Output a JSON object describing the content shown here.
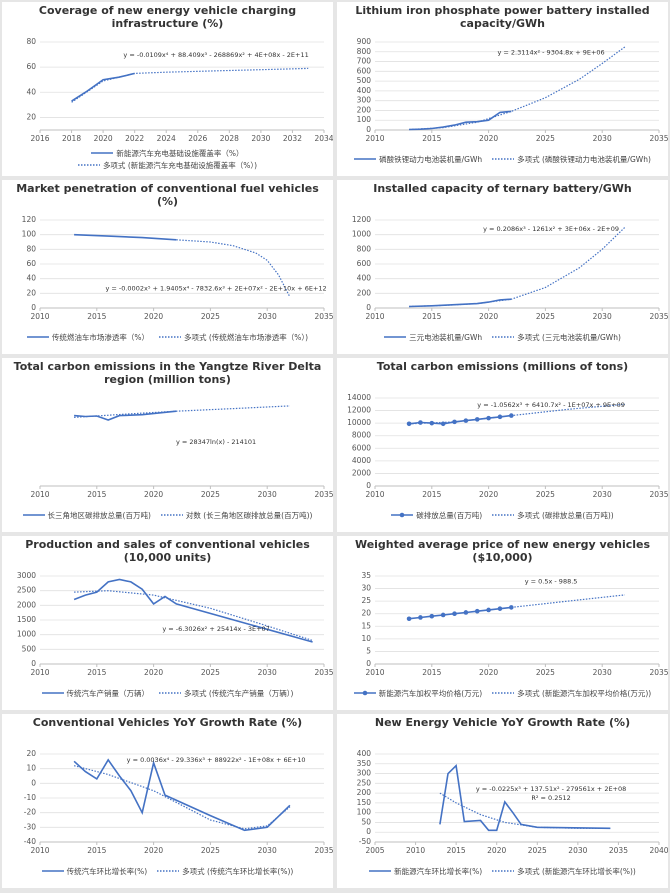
{
  "chart_data": [
    {
      "type": "line",
      "title": "Coverage of new energy vehicle charging infrastructure (%)",
      "xlim": [
        2016,
        2034
      ],
      "xticks": [
        2016,
        2018,
        2020,
        2022,
        2024,
        2026,
        2028,
        2030,
        2032,
        2034
      ],
      "ylim": [
        10,
        80
      ],
      "yticks": [
        20,
        40,
        60,
        80
      ],
      "grid": true,
      "series": [
        {
          "name": "新能源汽车充电基础设施覆盖率（%）",
          "color": "#4472c4",
          "style": "solid",
          "x": [
            2018,
            2019,
            2020,
            2021,
            2022
          ],
          "values": [
            33,
            41,
            50,
            52,
            55
          ]
        },
        {
          "name": "多项式 (新能源汽车充电基础设施覆盖率（%）)",
          "color": "#4472c4",
          "style": "dotted",
          "x": [
            2018,
            2020,
            2022,
            2024,
            2027,
            2030,
            2033
          ],
          "values": [
            32,
            49,
            55,
            56,
            57,
            58,
            59
          ]
        }
      ],
      "annotations": [
        "y = -0.0109x⁴ + 88.409x³ - 268869x² + 4E+08x - 2E+11"
      ]
    },
    {
      "type": "line",
      "title": "Lithium iron phosphate power battery installed capacity/GWh",
      "xlim": [
        2010,
        2035
      ],
      "xticks": [
        2010,
        2015,
        2020,
        2025,
        2030,
        2035
      ],
      "ylim": [
        0,
        900
      ],
      "yticks": [
        0,
        100,
        200,
        300,
        400,
        500,
        600,
        700,
        800,
        900
      ],
      "grid": true,
      "series": [
        {
          "name": "磷酸铁锂动力电池装机量/GWh",
          "color": "#4472c4",
          "style": "solid",
          "x": [
            2013,
            2014,
            2015,
            2016,
            2017,
            2018,
            2019,
            2020,
            2021,
            2022
          ],
          "values": [
            5,
            8,
            15,
            30,
            50,
            80,
            85,
            100,
            180,
            190
          ]
        },
        {
          "name": "多项式 (磷酸铁锂动力电池装机量/GWh)",
          "color": "#4472c4",
          "style": "dotted",
          "x": [
            2013,
            2016,
            2019,
            2022,
            2025,
            2028,
            2030,
            2032
          ],
          "values": [
            5,
            25,
            80,
            190,
            330,
            520,
            680,
            850
          ]
        }
      ],
      "annotations": [
        "y = 2.3114x² - 9304.8x + 9E+06"
      ]
    },
    {
      "type": "line",
      "title": "Market penetration of conventional fuel vehicles (%)",
      "xlim": [
        2010,
        2035
      ],
      "xticks": [
        2010,
        2015,
        2020,
        2025,
        2030,
        2035
      ],
      "ylim": [
        0,
        120
      ],
      "yticks": [
        0,
        20,
        40,
        60,
        80,
        100,
        120
      ],
      "grid": true,
      "series": [
        {
          "name": "传统燃油车市场渗透率（%）",
          "color": "#4472c4",
          "style": "solid",
          "x": [
            2013,
            2016,
            2019,
            2022
          ],
          "values": [
            100,
            98,
            96,
            93
          ]
        },
        {
          "name": "多项式 (传统燃油车市场渗透率（%）)",
          "color": "#4472c4",
          "style": "dotted",
          "x": [
            2022,
            2025,
            2027,
            2029,
            2030,
            2031,
            2032
          ],
          "values": [
            93,
            90,
            85,
            75,
            65,
            45,
            15
          ]
        }
      ],
      "annotations": [
        "y = -0.0002x⁵ + 1.9405x⁴ - 7832.6x³ + 2E+07x² - 2E+10x + 6E+12"
      ]
    },
    {
      "type": "line",
      "title": "Installed capacity of ternary battery/GWh",
      "xlim": [
        2010,
        2035
      ],
      "xticks": [
        2010,
        2015,
        2020,
        2025,
        2030,
        2035
      ],
      "ylim": [
        0,
        1200
      ],
      "yticks": [
        0,
        200,
        400,
        600,
        800,
        1000,
        1200
      ],
      "grid": true,
      "series": [
        {
          "name": "三元电池装机量/GWh",
          "color": "#4472c4",
          "style": "solid",
          "x": [
            2013,
            2015,
            2017,
            2019,
            2020,
            2021,
            2022
          ],
          "values": [
            20,
            30,
            45,
            60,
            80,
            110,
            120
          ]
        },
        {
          "name": "多项式 (三元电池装机量/GWh)",
          "color": "#4472c4",
          "style": "dotted",
          "x": [
            2013,
            2016,
            2019,
            2022,
            2025,
            2028,
            2030,
            2032
          ],
          "values": [
            20,
            35,
            60,
            120,
            280,
            550,
            800,
            1100
          ]
        }
      ],
      "annotations": [
        "y = 0.2086x³ - 1261x² + 3E+06x - 2E+09"
      ]
    },
    {
      "type": "line",
      "title": "Total carbon emissions in the Yangtze River Delta region (million tons)",
      "xlim": [
        2010,
        2035
      ],
      "xticks": [
        2010,
        2015,
        2020,
        2025,
        2030,
        2035
      ],
      "ylim": [
        0,
        2000
      ],
      "grid": false,
      "series": [
        {
          "name": "长三角地区碳排放总量(百万吨)",
          "color": "#4472c4",
          "style": "solid",
          "x": [
            2013,
            2014,
            2015,
            2016,
            2017,
            2019,
            2022
          ],
          "values": [
            1600,
            1580,
            1590,
            1500,
            1600,
            1620,
            1700
          ]
        },
        {
          "name": "对数 (长三角地区碳排放总量(百万吨))",
          "color": "#4472c4",
          "style": "dotted",
          "x": [
            2013,
            2018,
            2022,
            2027,
            2032
          ],
          "values": [
            1560,
            1640,
            1700,
            1760,
            1820
          ]
        }
      ],
      "annotations": [
        "y = 28347ln(x) - 214101"
      ]
    },
    {
      "type": "line",
      "title": "Total carbon emissions (millions of tons)",
      "xlim": [
        2010,
        2035
      ],
      "xticks": [
        2010,
        2015,
        2020,
        2025,
        2030,
        2035
      ],
      "ylim": [
        0,
        14000
      ],
      "yticks": [
        0,
        2000,
        4000,
        6000,
        8000,
        10000,
        12000,
        14000
      ],
      "grid": true,
      "series": [
        {
          "name": "碳排放总量(百万吨)",
          "color": "#4472c4",
          "style": "solid",
          "marker": "circle",
          "x": [
            2013,
            2014,
            2015,
            2016,
            2017,
            2018,
            2019,
            2020,
            2021,
            2022
          ],
          "values": [
            9900,
            10100,
            10000,
            9900,
            10200,
            10400,
            10600,
            10800,
            11000,
            11200
          ]
        },
        {
          "name": "多项式 (碳排放总量(百万吨))",
          "color": "#4472c4",
          "style": "dotted",
          "x": [
            2013,
            2017,
            2022,
            2027,
            2032
          ],
          "values": [
            9900,
            10200,
            11200,
            12200,
            13000
          ]
        }
      ],
      "annotations": [
        "y = -1.0562x³ + 6410.7x² - 1E+07x + 9E+09"
      ]
    },
    {
      "type": "line",
      "title": "Production and sales of conventional vehicles (10,000 units)",
      "xlim": [
        2010,
        2035
      ],
      "xticks": [
        2010,
        2015,
        2020,
        2025,
        2030,
        2035
      ],
      "ylim": [
        0,
        3000
      ],
      "yticks": [
        0,
        500,
        1000,
        1500,
        2000,
        2500,
        3000
      ],
      "grid": true,
      "series": [
        {
          "name": "传统汽车产销量（万辆）",
          "color": "#4472c4",
          "style": "solid",
          "x": [
            2013,
            2014,
            2015,
            2016,
            2017,
            2018,
            2019,
            2020,
            2021,
            2022,
            2034
          ],
          "values": [
            2200,
            2350,
            2450,
            2800,
            2880,
            2800,
            2550,
            2050,
            2300,
            2050,
            750
          ]
        },
        {
          "name": "多项式 (传统汽车产销量（万辆）)",
          "color": "#4472c4",
          "style": "dotted",
          "x": [
            2013,
            2016,
            2020,
            2025,
            2030,
            2034
          ],
          "values": [
            2450,
            2500,
            2350,
            1900,
            1300,
            800
          ]
        }
      ],
      "annotations": [
        "y = -6.3026x² + 25414x - 3E+07"
      ]
    },
    {
      "type": "line",
      "title": "Weighted average price of new energy vehicles ($10,000)",
      "xlim": [
        2010,
        2035
      ],
      "xticks": [
        2010,
        2015,
        2020,
        2025,
        2030,
        2035
      ],
      "ylim": [
        0,
        35
      ],
      "yticks": [
        0,
        5,
        10,
        15,
        20,
        25,
        30,
        35
      ],
      "grid": true,
      "series": [
        {
          "name": "新能源汽车加权平均价格(万元)",
          "color": "#4472c4",
          "style": "solid",
          "marker": "circle",
          "x": [
            2013,
            2014,
            2015,
            2016,
            2017,
            2018,
            2019,
            2020,
            2021,
            2022
          ],
          "values": [
            18,
            18.5,
            19,
            19.5,
            20,
            20.5,
            21,
            21.5,
            22,
            22.5
          ]
        },
        {
          "name": "多项式 (新能源汽车加权平均价格(万元))",
          "color": "#4472c4",
          "style": "dotted",
          "x": [
            2022,
            2027,
            2032
          ],
          "values": [
            22.5,
            25,
            27.5
          ]
        }
      ],
      "annotations": [
        "y = 0.5x - 988.5"
      ]
    },
    {
      "type": "line",
      "title": "Conventional Vehicles YoY Growth Rate (%)",
      "xlim": [
        2010,
        2035
      ],
      "xticks": [
        2010,
        2015,
        2020,
        2025,
        2030,
        2035
      ],
      "ylim": [
        -40,
        20
      ],
      "yticks": [
        -40,
        -30,
        -20,
        -10,
        0,
        10,
        20
      ],
      "grid": true,
      "series": [
        {
          "name": "传统汽车环比增长率(%)",
          "color": "#4472c4",
          "style": "solid",
          "x": [
            2013,
            2014,
            2015,
            2016,
            2017,
            2018,
            2019,
            2020,
            2021,
            2025,
            2028,
            2030,
            2032
          ],
          "values": [
            15,
            8,
            3,
            16,
            5,
            -5,
            -20,
            14,
            -8,
            -22,
            -32,
            -30,
            -15
          ]
        },
        {
          "name": "多项式 (传统汽车环比增长率(%))",
          "color": "#4472c4",
          "style": "dotted",
          "x": [
            2013,
            2016,
            2020,
            2025,
            2028,
            2030,
            2032
          ],
          "values": [
            12,
            6,
            -5,
            -25,
            -31,
            -29,
            -16
          ]
        }
      ],
      "annotations": [
        "y = 0.0036x⁴ - 29.336x³ + 88922x² - 1E+08x + 6E+10"
      ]
    },
    {
      "type": "line",
      "title": "New Energy Vehicle YoY Growth Rate (%)",
      "xlim": [
        2005,
        2040
      ],
      "xticks": [
        2005,
        2010,
        2015,
        2020,
        2025,
        2030,
        2035,
        2040
      ],
      "ylim": [
        -50,
        400
      ],
      "yticks": [
        -50,
        0,
        50,
        100,
        150,
        200,
        250,
        300,
        350,
        400
      ],
      "grid": true,
      "series": [
        {
          "name": "新能源汽车环比增长率(%)",
          "color": "#4472c4",
          "style": "solid",
          "x": [
            2013,
            2014,
            2015,
            2016,
            2018,
            2019,
            2020,
            2021,
            2022,
            2023,
            2025,
            2034
          ],
          "values": [
            40,
            300,
            340,
            55,
            60,
            10,
            10,
            155,
            100,
            40,
            25,
            20
          ]
        },
        {
          "name": "多项式 (新能源汽车环比增长率(%))",
          "color": "#4472c4",
          "style": "dotted",
          "x": [
            2013,
            2015,
            2018,
            2021,
            2025,
            2030,
            2034
          ],
          "values": [
            200,
            150,
            90,
            50,
            25,
            20,
            20
          ]
        }
      ],
      "annotations": [
        "y = -0.0225x³ + 137.51x² - 279561x + 2E+08",
        "R² = 0.2512"
      ]
    }
  ]
}
